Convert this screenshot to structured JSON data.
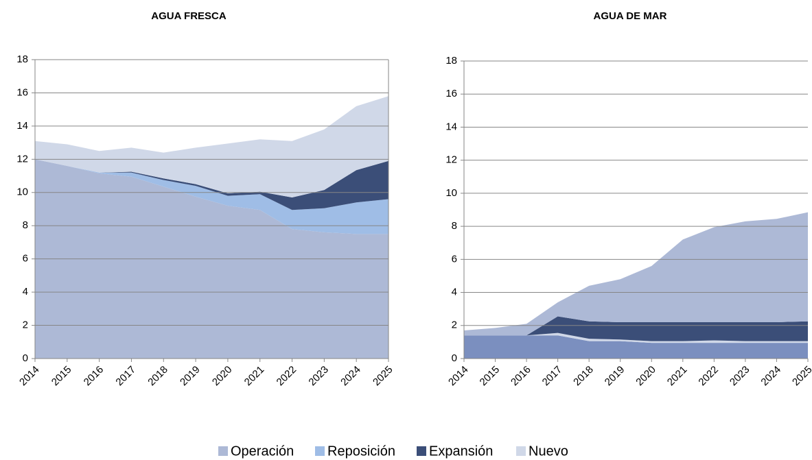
{
  "chart_data": [
    {
      "type": "stacked_area",
      "title": "AGUA FRESCA",
      "x": [
        2014,
        2015,
        2016,
        2017,
        2018,
        2019,
        2020,
        2021,
        2022,
        2023,
        2024,
        2025
      ],
      "xlim": [
        2014,
        2025
      ],
      "ylim": [
        0,
        18
      ],
      "yticks": [
        0,
        2,
        4,
        6,
        8,
        10,
        12,
        14,
        16,
        18
      ],
      "grid": true,
      "series": [
        {
          "name": "Operación",
          "color": "#adb9d6",
          "values": [
            12.0,
            11.6,
            11.15,
            10.95,
            10.35,
            9.75,
            9.2,
            8.95,
            7.8,
            7.6,
            7.5,
            7.5
          ]
        },
        {
          "name": "Reposición",
          "color": "#9fbde6",
          "values": [
            0,
            0,
            0.05,
            0.25,
            0.4,
            0.65,
            0.6,
            0.95,
            1.15,
            1.45,
            1.9,
            2.1
          ]
        },
        {
          "name": "Expansión",
          "color": "#3b4e78",
          "values": [
            0,
            0,
            0,
            0.05,
            0.1,
            0.1,
            0.15,
            0.15,
            0.75,
            1.1,
            1.95,
            2.3
          ]
        },
        {
          "name": "Nuevo",
          "color": "#d0d8e8",
          "values": [
            1.1,
            1.3,
            1.3,
            1.45,
            1.55,
            2.2,
            3.0,
            3.15,
            3.4,
            3.65,
            3.85,
            3.9
          ]
        }
      ]
    },
    {
      "type": "stacked_area",
      "title": "AGUA DE MAR",
      "x": [
        2014,
        2015,
        2016,
        2017,
        2018,
        2019,
        2020,
        2021,
        2022,
        2023,
        2024,
        2025
      ],
      "xlim": [
        2014,
        2025
      ],
      "ylim": [
        0,
        18
      ],
      "yticks": [
        0,
        2,
        4,
        6,
        8,
        10,
        12,
        14,
        16,
        18
      ],
      "grid": true,
      "series": [
        {
          "name": "Operación",
          "color": "#7b8fbf",
          "values": [
            1.4,
            1.4,
            1.4,
            1.4,
            1.05,
            1.05,
            0.95,
            0.95,
            0.95,
            0.95,
            0.95,
            0.95
          ]
        },
        {
          "name": "Reposición",
          "color": "#d0d8e8",
          "values": [
            0,
            0,
            0,
            0.15,
            0.15,
            0.1,
            0.1,
            0.1,
            0.15,
            0.1,
            0.1,
            0.1
          ]
        },
        {
          "name": "Expansión",
          "color": "#3b4e78",
          "values": [
            0,
            0,
            0,
            1.0,
            1.05,
            1.05,
            1.15,
            1.15,
            1.1,
            1.15,
            1.15,
            1.2
          ]
        },
        {
          "name": "Nuevo",
          "color": "#adb9d6",
          "values": [
            0.3,
            0.45,
            0.7,
            0.85,
            2.15,
            2.6,
            3.4,
            5.0,
            5.75,
            6.1,
            6.25,
            6.6
          ]
        }
      ]
    }
  ]
}
